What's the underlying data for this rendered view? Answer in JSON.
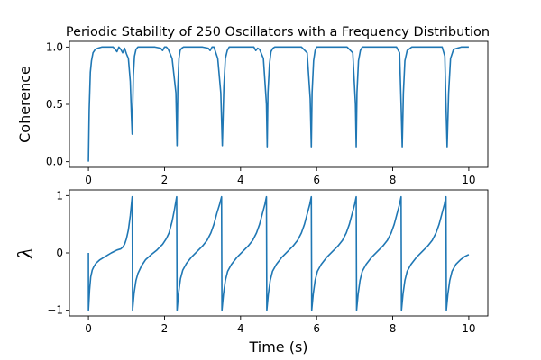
{
  "figure_title": "Periodic Stability of 250 Oscillators with a Frequency Distribution",
  "color": "#1f77b4",
  "chart_data": [
    {
      "type": "line",
      "title": "Periodic Stability of 250 Oscillators with a Frequency Distribution",
      "xlabel": "",
      "ylabel": "Coherence",
      "xlim": [
        -0.5,
        10.5
      ],
      "ylim": [
        -0.05,
        1.05
      ],
      "xticks": [
        0,
        2,
        4,
        6,
        8,
        10
      ],
      "xtick_labels": [
        "0",
        "2",
        "4",
        "6",
        "8",
        "10"
      ],
      "yticks": [
        0.0,
        0.5,
        1.0
      ],
      "ytick_labels": [
        "0.0",
        "0.5",
        "1.0"
      ],
      "series": [
        {
          "name": "coherence",
          "x": [
            0,
            0.02,
            0.05,
            0.08,
            0.12,
            0.18,
            0.25,
            0.35,
            0.45,
            0.55,
            0.65,
            0.7,
            0.75,
            0.8,
            0.85,
            0.9,
            0.95,
            1.0,
            1.05,
            1.1,
            1.13,
            1.15,
            1.18,
            1.21,
            1.25,
            1.3,
            1.35,
            1.45,
            1.6,
            1.75,
            1.9,
            1.95,
            2.0,
            2.05,
            2.1,
            2.2,
            2.3,
            2.33,
            2.35,
            2.38,
            2.41,
            2.45,
            2.5,
            2.6,
            2.8,
            3.0,
            3.15,
            3.2,
            3.25,
            3.3,
            3.4,
            3.48,
            3.52,
            3.56,
            3.6,
            3.65,
            3.7,
            3.8,
            4.0,
            4.2,
            4.35,
            4.4,
            4.45,
            4.5,
            4.6,
            4.68,
            4.7,
            4.72,
            4.76,
            4.8,
            4.85,
            4.9,
            5.0,
            5.2,
            5.4,
            5.6,
            5.75,
            5.83,
            5.86,
            5.88,
            5.92,
            5.96,
            6.0,
            6.05,
            6.2,
            6.4,
            6.6,
            6.8,
            6.95,
            7.02,
            7.04,
            7.06,
            7.1,
            7.15,
            7.2,
            7.3,
            7.5,
            7.7,
            7.9,
            8.1,
            8.18,
            8.22,
            8.25,
            8.28,
            8.32,
            8.38,
            8.5,
            8.7,
            8.9,
            9.1,
            9.3,
            9.37,
            9.4,
            9.43,
            9.47,
            9.52,
            9.6,
            9.8,
            10.0
          ],
          "y": [
            0.0,
            0.45,
            0.78,
            0.88,
            0.95,
            0.98,
            0.99,
            1.0,
            1.0,
            1.0,
            1.0,
            0.98,
            0.96,
            1.0,
            0.98,
            0.95,
            0.99,
            0.94,
            0.9,
            0.7,
            0.4,
            0.24,
            0.75,
            0.92,
            0.98,
            1.0,
            1.0,
            1.0,
            1.0,
            1.0,
            0.99,
            0.97,
            1.0,
            1.0,
            0.98,
            0.9,
            0.6,
            0.14,
            0.65,
            0.9,
            0.97,
            0.99,
            1.0,
            1.0,
            1.0,
            1.0,
            0.99,
            0.97,
            1.0,
            1.0,
            0.9,
            0.6,
            0.14,
            0.65,
            0.9,
            0.97,
            1.0,
            1.0,
            1.0,
            1.0,
            1.0,
            0.97,
            0.99,
            0.98,
            0.9,
            0.5,
            0.13,
            0.6,
            0.85,
            0.96,
            0.99,
            1.0,
            1.0,
            1.0,
            1.0,
            1.0,
            0.95,
            0.55,
            0.13,
            0.6,
            0.88,
            0.97,
            1.0,
            1.0,
            1.0,
            1.0,
            1.0,
            1.0,
            0.95,
            0.5,
            0.13,
            0.6,
            0.88,
            0.97,
            1.0,
            1.0,
            1.0,
            1.0,
            1.0,
            1.0,
            0.95,
            0.5,
            0.13,
            0.6,
            0.88,
            0.97,
            1.0,
            1.0,
            1.0,
            1.0,
            1.0,
            0.92,
            0.5,
            0.13,
            0.6,
            0.9,
            0.98,
            1.0,
            1.0
          ]
        }
      ]
    },
    {
      "type": "line",
      "title": "",
      "xlabel": "Time (s)",
      "ylabel": "λ",
      "xlim": [
        -0.5,
        10.5
      ],
      "ylim": [
        -1.1,
        1.1
      ],
      "xticks": [
        0,
        2,
        4,
        6,
        8,
        10
      ],
      "xtick_labels": [
        "0",
        "2",
        "4",
        "6",
        "8",
        "10"
      ],
      "yticks": [
        -1,
        0,
        1
      ],
      "ytick_labels": [
        "−1",
        "0",
        "1"
      ],
      "series": [
        {
          "name": "lambda",
          "x": [
            0,
            0.001,
            0.03,
            0.06,
            0.1,
            0.15,
            0.2,
            0.3,
            0.45,
            0.6,
            0.75,
            0.85,
            0.9,
            0.95,
            1.0,
            1.05,
            1.1,
            1.15,
            1.16,
            1.2,
            1.25,
            1.3,
            1.4,
            1.5,
            1.65,
            1.8,
            1.95,
            2.05,
            2.12,
            2.2,
            2.26,
            2.32,
            2.33,
            2.37,
            2.42,
            2.48,
            2.58,
            2.7,
            2.85,
            3.0,
            3.12,
            3.22,
            3.3,
            3.38,
            3.45,
            3.5,
            3.51,
            3.55,
            3.6,
            3.66,
            3.76,
            3.9,
            4.05,
            4.2,
            4.32,
            4.42,
            4.5,
            4.58,
            4.64,
            4.68,
            4.69,
            4.73,
            4.78,
            4.84,
            4.94,
            5.08,
            5.23,
            5.38,
            5.5,
            5.6,
            5.68,
            5.76,
            5.82,
            5.86,
            5.87,
            5.91,
            5.96,
            6.02,
            6.12,
            6.26,
            6.41,
            6.56,
            6.68,
            6.78,
            6.86,
            6.94,
            7.0,
            7.04,
            7.05,
            7.09,
            7.14,
            7.2,
            7.3,
            7.44,
            7.59,
            7.74,
            7.86,
            7.96,
            8.04,
            8.12,
            8.18,
            8.22,
            8.23,
            8.27,
            8.32,
            8.38,
            8.48,
            8.62,
            8.77,
            8.92,
            9.04,
            9.14,
            9.22,
            9.3,
            9.36,
            9.4,
            9.41,
            9.45,
            9.5,
            9.56,
            9.66,
            9.78,
            9.9,
            10.0
          ],
          "y": [
            0.0,
            -1.0,
            -0.65,
            -0.42,
            -0.3,
            -0.23,
            -0.18,
            -0.12,
            -0.06,
            0.0,
            0.05,
            0.07,
            0.1,
            0.15,
            0.25,
            0.4,
            0.65,
            0.98,
            -1.0,
            -0.7,
            -0.48,
            -0.36,
            -0.22,
            -0.12,
            -0.03,
            0.05,
            0.15,
            0.25,
            0.35,
            0.55,
            0.75,
            0.98,
            -1.0,
            -0.7,
            -0.45,
            -0.3,
            -0.18,
            -0.08,
            0.02,
            0.12,
            0.22,
            0.35,
            0.5,
            0.7,
            0.85,
            0.98,
            -1.0,
            -0.72,
            -0.48,
            -0.32,
            -0.2,
            -0.08,
            0.02,
            0.12,
            0.22,
            0.35,
            0.5,
            0.7,
            0.85,
            0.98,
            -1.0,
            -0.72,
            -0.48,
            -0.32,
            -0.2,
            -0.08,
            0.02,
            0.12,
            0.22,
            0.35,
            0.5,
            0.7,
            0.85,
            0.98,
            -1.0,
            -0.72,
            -0.48,
            -0.32,
            -0.2,
            -0.08,
            0.02,
            0.12,
            0.22,
            0.35,
            0.5,
            0.7,
            0.85,
            0.98,
            -1.0,
            -0.72,
            -0.48,
            -0.32,
            -0.2,
            -0.08,
            0.02,
            0.12,
            0.22,
            0.35,
            0.5,
            0.7,
            0.85,
            0.98,
            -1.0,
            -0.72,
            -0.48,
            -0.32,
            -0.2,
            -0.08,
            0.02,
            0.12,
            0.22,
            0.35,
            0.5,
            0.7,
            0.85,
            0.98,
            -1.0,
            -0.72,
            -0.48,
            -0.32,
            -0.2,
            -0.12,
            -0.06,
            -0.03
          ]
        }
      ]
    }
  ]
}
